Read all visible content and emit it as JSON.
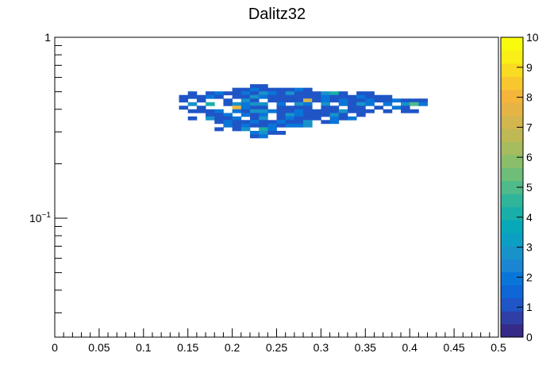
{
  "chart_data": {
    "type": "heatmap",
    "title": "Dalitz32",
    "xlabel": "",
    "ylabel": "",
    "x_scale": "linear",
    "y_scale": "log",
    "xlim": [
      0,
      0.5
    ],
    "ylim": [
      0.022,
      1
    ],
    "x_tick_labels": [
      "0",
      "0.05",
      "0.1",
      "0.15",
      "0.2",
      "0.25",
      "0.3",
      "0.35",
      "0.4",
      "0.45",
      "0.5"
    ],
    "y_tick_labels": [
      {
        "value": 1,
        "base": "1",
        "exp": ""
      },
      {
        "value": 0.1,
        "base": "10",
        "exp": "−1"
      }
    ],
    "z_range": [
      0,
      10
    ],
    "z_tick_labels": [
      "0",
      "1",
      "2",
      "3",
      "4",
      "5",
      "6",
      "7",
      "8",
      "9",
      "10"
    ],
    "x_bin_width": 0.01,
    "y_bin_ratio": 1.0467,
    "palette": [
      "#352a87",
      "#2f3fa6",
      "#1f55c6",
      "#0f66d7",
      "#0a75d8",
      "#1a86d2",
      "#1893ca",
      "#0d9fc3",
      "#07a8b8",
      "#19afa9",
      "#2fb59a",
      "#4fba8a",
      "#6ebd79",
      "#8bbe6a",
      "#a6bc5e",
      "#bfb955",
      "#d4b64e",
      "#e6b345",
      "#f3b63a",
      "#f8c72e",
      "#f9db23",
      "#f9ee15",
      "#f9fb0e"
    ],
    "cells": [
      [
        0.225,
        0.538,
        1
      ],
      [
        0.235,
        0.538,
        1
      ],
      [
        0.205,
        0.514,
        1
      ],
      [
        0.215,
        0.514,
        1
      ],
      [
        0.225,
        0.514,
        2
      ],
      [
        0.235,
        0.514,
        1
      ],
      [
        0.245,
        0.514,
        1
      ],
      [
        0.255,
        0.514,
        1
      ],
      [
        0.265,
        0.514,
        1
      ],
      [
        0.275,
        0.514,
        2
      ],
      [
        0.285,
        0.514,
        1
      ],
      [
        0.155,
        0.491,
        1
      ],
      [
        0.175,
        0.491,
        1
      ],
      [
        0.185,
        0.491,
        2
      ],
      [
        0.195,
        0.491,
        1
      ],
      [
        0.205,
        0.491,
        1
      ],
      [
        0.215,
        0.491,
        2
      ],
      [
        0.225,
        0.491,
        1
      ],
      [
        0.235,
        0.491,
        3
      ],
      [
        0.245,
        0.491,
        2
      ],
      [
        0.255,
        0.491,
        1
      ],
      [
        0.265,
        0.491,
        3
      ],
      [
        0.275,
        0.491,
        1
      ],
      [
        0.285,
        0.491,
        1
      ],
      [
        0.295,
        0.491,
        1
      ],
      [
        0.305,
        0.491,
        3
      ],
      [
        0.315,
        0.491,
        4
      ],
      [
        0.325,
        0.491,
        1
      ],
      [
        0.345,
        0.491,
        1
      ],
      [
        0.355,
        0.491,
        1
      ],
      [
        0.145,
        0.469,
        1
      ],
      [
        0.155,
        0.469,
        1
      ],
      [
        0.165,
        0.469,
        1
      ],
      [
        0.175,
        0.469,
        2
      ],
      [
        0.185,
        0.469,
        1
      ],
      [
        0.205,
        0.469,
        1
      ],
      [
        0.215,
        0.469,
        1
      ],
      [
        0.225,
        0.469,
        3
      ],
      [
        0.235,
        0.469,
        2
      ],
      [
        0.245,
        0.469,
        1
      ],
      [
        0.255,
        0.469,
        1
      ],
      [
        0.265,
        0.469,
        1
      ],
      [
        0.275,
        0.469,
        1
      ],
      [
        0.285,
        0.469,
        1
      ],
      [
        0.295,
        0.469,
        1
      ],
      [
        0.305,
        0.469,
        2
      ],
      [
        0.315,
        0.469,
        1
      ],
      [
        0.325,
        0.469,
        1
      ],
      [
        0.335,
        0.469,
        1
      ],
      [
        0.345,
        0.469,
        2
      ],
      [
        0.355,
        0.469,
        1
      ],
      [
        0.365,
        0.469,
        1
      ],
      [
        0.375,
        0.469,
        1
      ],
      [
        0.145,
        0.448,
        1
      ],
      [
        0.165,
        0.448,
        1
      ],
      [
        0.195,
        0.448,
        1
      ],
      [
        0.215,
        0.448,
        3
      ],
      [
        0.225,
        0.448,
        1
      ],
      [
        0.245,
        0.448,
        1
      ],
      [
        0.255,
        0.448,
        1
      ],
      [
        0.265,
        0.448,
        1
      ],
      [
        0.275,
        0.448,
        1
      ],
      [
        0.285,
        0.448,
        7
      ],
      [
        0.295,
        0.448,
        1
      ],
      [
        0.305,
        0.448,
        2
      ],
      [
        0.315,
        0.448,
        1
      ],
      [
        0.325,
        0.448,
        2
      ],
      [
        0.335,
        0.448,
        1
      ],
      [
        0.345,
        0.448,
        1
      ],
      [
        0.355,
        0.448,
        2
      ],
      [
        0.365,
        0.448,
        1
      ],
      [
        0.375,
        0.448,
        1
      ],
      [
        0.385,
        0.448,
        2
      ],
      [
        0.395,
        0.448,
        1
      ],
      [
        0.405,
        0.448,
        1
      ],
      [
        0.415,
        0.448,
        1
      ],
      [
        0.155,
        0.428,
        3
      ],
      [
        0.175,
        0.428,
        4
      ],
      [
        0.195,
        0.428,
        1
      ],
      [
        0.205,
        0.428,
        3
      ],
      [
        0.215,
        0.428,
        2
      ],
      [
        0.225,
        0.428,
        3
      ],
      [
        0.235,
        0.428,
        3
      ],
      [
        0.255,
        0.428,
        2
      ],
      [
        0.275,
        0.428,
        3
      ],
      [
        0.285,
        0.428,
        2
      ],
      [
        0.305,
        0.428,
        3
      ],
      [
        0.325,
        0.428,
        2
      ],
      [
        0.335,
        0.428,
        1
      ],
      [
        0.345,
        0.428,
        3
      ],
      [
        0.355,
        0.428,
        2
      ],
      [
        0.375,
        0.428,
        2
      ],
      [
        0.395,
        0.428,
        3
      ],
      [
        0.405,
        0.428,
        5
      ],
      [
        0.415,
        0.428,
        2
      ],
      [
        0.145,
        0.409,
        1
      ],
      [
        0.165,
        0.409,
        1
      ],
      [
        0.205,
        0.409,
        8
      ],
      [
        0.215,
        0.409,
        2
      ],
      [
        0.225,
        0.409,
        1
      ],
      [
        0.235,
        0.409,
        1
      ],
      [
        0.255,
        0.409,
        1
      ],
      [
        0.265,
        0.409,
        1
      ],
      [
        0.275,
        0.409,
        1
      ],
      [
        0.285,
        0.409,
        1
      ],
      [
        0.305,
        0.409,
        1
      ],
      [
        0.315,
        0.409,
        1
      ],
      [
        0.335,
        0.409,
        1
      ],
      [
        0.345,
        0.409,
        1
      ],
      [
        0.365,
        0.409,
        1
      ],
      [
        0.385,
        0.409,
        2
      ],
      [
        0.395,
        0.409,
        1
      ],
      [
        0.155,
        0.391,
        1
      ],
      [
        0.165,
        0.391,
        1
      ],
      [
        0.175,
        0.391,
        1
      ],
      [
        0.185,
        0.391,
        2
      ],
      [
        0.205,
        0.391,
        2
      ],
      [
        0.215,
        0.391,
        1
      ],
      [
        0.225,
        0.391,
        3
      ],
      [
        0.235,
        0.391,
        3
      ],
      [
        0.245,
        0.391,
        2
      ],
      [
        0.255,
        0.391,
        1
      ],
      [
        0.265,
        0.391,
        1
      ],
      [
        0.275,
        0.391,
        2
      ],
      [
        0.285,
        0.391,
        1
      ],
      [
        0.295,
        0.391,
        1
      ],
      [
        0.305,
        0.391,
        1
      ],
      [
        0.315,
        0.391,
        1
      ],
      [
        0.325,
        0.391,
        3
      ],
      [
        0.335,
        0.391,
        1
      ],
      [
        0.345,
        0.391,
        1
      ],
      [
        0.355,
        0.391,
        1
      ],
      [
        0.375,
        0.391,
        1
      ],
      [
        0.395,
        0.391,
        1
      ],
      [
        0.405,
        0.391,
        1
      ],
      [
        0.175,
        0.373,
        1
      ],
      [
        0.185,
        0.373,
        1
      ],
      [
        0.195,
        0.373,
        2
      ],
      [
        0.215,
        0.373,
        2
      ],
      [
        0.225,
        0.373,
        1
      ],
      [
        0.235,
        0.373,
        2
      ],
      [
        0.255,
        0.373,
        1
      ],
      [
        0.265,
        0.373,
        3
      ],
      [
        0.275,
        0.373,
        2
      ],
      [
        0.285,
        0.373,
        1
      ],
      [
        0.295,
        0.373,
        1
      ],
      [
        0.305,
        0.373,
        1
      ],
      [
        0.315,
        0.373,
        3
      ],
      [
        0.325,
        0.373,
        1
      ],
      [
        0.345,
        0.373,
        1
      ],
      [
        0.155,
        0.357,
        1
      ],
      [
        0.175,
        0.357,
        3
      ],
      [
        0.185,
        0.357,
        1
      ],
      [
        0.195,
        0.357,
        1
      ],
      [
        0.205,
        0.357,
        2
      ],
      [
        0.225,
        0.357,
        1
      ],
      [
        0.235,
        0.357,
        3
      ],
      [
        0.255,
        0.357,
        1
      ],
      [
        0.265,
        0.357,
        2
      ],
      [
        0.275,
        0.357,
        1
      ],
      [
        0.285,
        0.357,
        1
      ],
      [
        0.295,
        0.357,
        1
      ],
      [
        0.315,
        0.357,
        2
      ],
      [
        0.325,
        0.357,
        1
      ],
      [
        0.335,
        0.357,
        2
      ],
      [
        0.185,
        0.341,
        1
      ],
      [
        0.195,
        0.341,
        2
      ],
      [
        0.205,
        0.341,
        1
      ],
      [
        0.215,
        0.341,
        1
      ],
      [
        0.225,
        0.341,
        2
      ],
      [
        0.235,
        0.341,
        1
      ],
      [
        0.245,
        0.341,
        1
      ],
      [
        0.255,
        0.341,
        2
      ],
      [
        0.265,
        0.341,
        1
      ],
      [
        0.275,
        0.341,
        1
      ],
      [
        0.285,
        0.341,
        3
      ],
      [
        0.305,
        0.341,
        1
      ],
      [
        0.315,
        0.341,
        2
      ],
      [
        0.195,
        0.326,
        2
      ],
      [
        0.205,
        0.326,
        1
      ],
      [
        0.215,
        0.326,
        2
      ],
      [
        0.225,
        0.326,
        1
      ],
      [
        0.235,
        0.326,
        1
      ],
      [
        0.245,
        0.326,
        2
      ],
      [
        0.255,
        0.326,
        1
      ],
      [
        0.265,
        0.326,
        2
      ],
      [
        0.275,
        0.326,
        2
      ],
      [
        0.285,
        0.326,
        3
      ],
      [
        0.185,
        0.311,
        1
      ],
      [
        0.205,
        0.311,
        1
      ],
      [
        0.215,
        0.311,
        3
      ],
      [
        0.235,
        0.311,
        4
      ],
      [
        0.245,
        0.311,
        2
      ],
      [
        0.225,
        0.297,
        2
      ],
      [
        0.235,
        0.297,
        3
      ],
      [
        0.245,
        0.297,
        1
      ],
      [
        0.255,
        0.297,
        1
      ],
      [
        0.225,
        0.284,
        1
      ],
      [
        0.235,
        0.284,
        2
      ]
    ]
  }
}
